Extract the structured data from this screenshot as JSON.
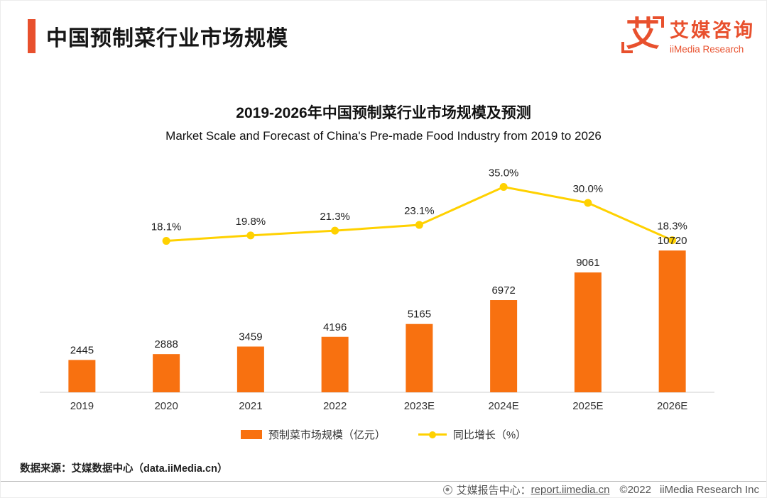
{
  "page": {
    "brand_color": "#E8502D",
    "title": "中国预制菜行业市场规模",
    "logo": {
      "glyph": "艾",
      "brand_cn": "艾媒咨询",
      "brand_en": "iiMedia Research"
    },
    "source_note": "数据来源：艾媒数据中心（data.iiMedia.cn）",
    "footer": {
      "prefix": "艾媒报告中心：",
      "link": "report.iimedia.cn",
      "copyright": "©2022",
      "company": "iiMedia Research Inc"
    }
  },
  "chart_data": {
    "type": "bar",
    "title": "2019-2026年中国预制菜行业市场规模及预测",
    "subtitle": "Market Scale and Forecast of China's Pre-made Food Industry from 2019 to 2026",
    "categories": [
      "2019",
      "2020",
      "2021",
      "2022",
      "2023E",
      "2024E",
      "2025E",
      "2026E"
    ],
    "series": [
      {
        "name": "预制菜市场规模（亿元）",
        "type": "bar",
        "color": "#F87110",
        "values": [
          2445,
          2888,
          3459,
          4196,
          5165,
          6972,
          9061,
          10720
        ]
      },
      {
        "name": "同比增长（%）",
        "type": "line",
        "color": "#FFD100",
        "x": [
          "2020",
          "2021",
          "2022",
          "2023E",
          "2024E",
          "2025E",
          "2026E"
        ],
        "values": [
          18.1,
          19.8,
          21.3,
          23.1,
          35.0,
          30.0,
          18.3
        ],
        "labels": [
          "18.1%",
          "19.8%",
          "21.3%",
          "23.1%",
          "35.0%",
          "30.0%",
          "18.3%"
        ]
      }
    ],
    "legend_position": "bottom",
    "grid": false,
    "bar_axis": {
      "min": 0,
      "max": 11800,
      "visible": false
    },
    "line_axis": {
      "min": 0,
      "max": 50,
      "visible": false
    }
  }
}
